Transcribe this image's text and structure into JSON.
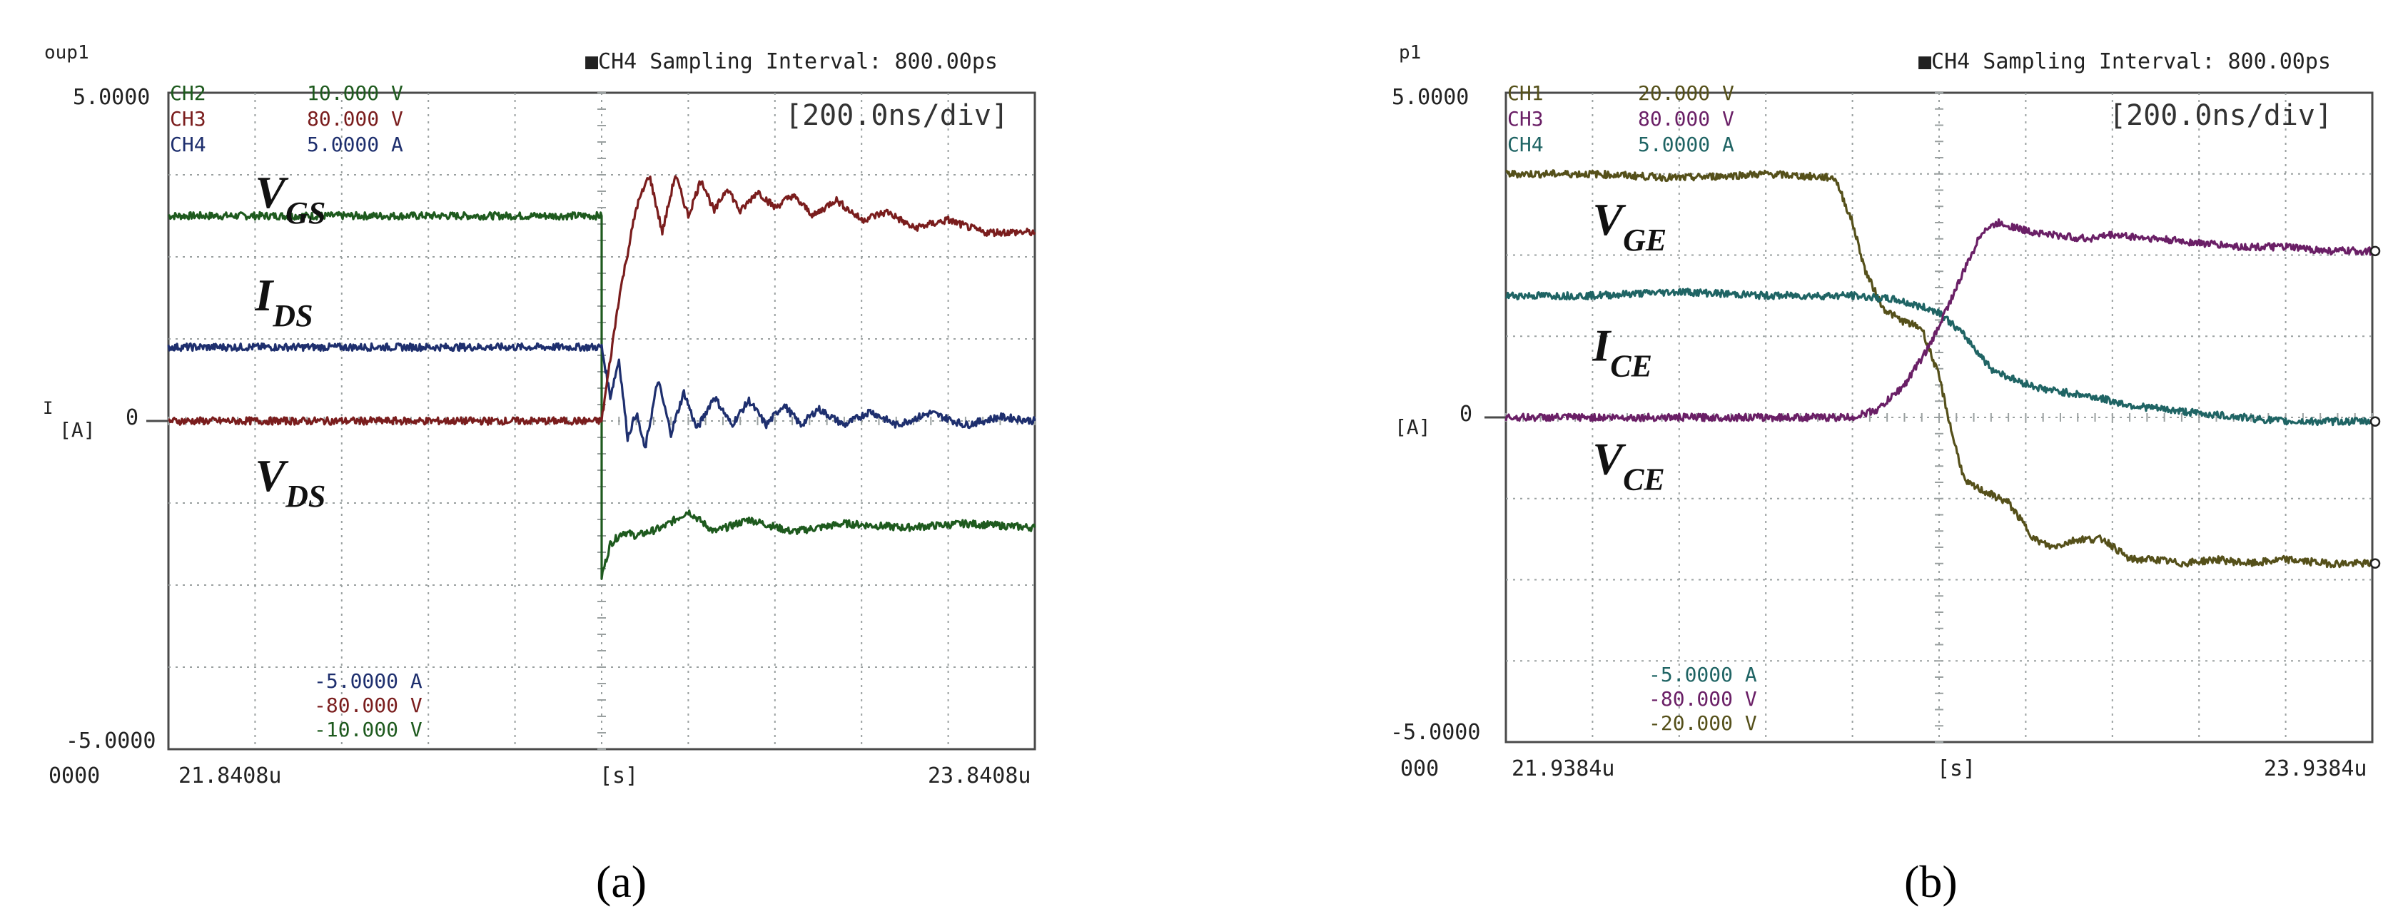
{
  "colors": {
    "grid": "#9aa0a0",
    "axis": "#4a4a4a",
    "text": "#222222",
    "green": "#1e5a1e",
    "red": "#7a1d1d",
    "navy": "#1e2f6e",
    "olive": "#55501a",
    "purple": "#6a1f66",
    "teal": "#1f6464"
  },
  "chart_data": [
    {
      "type": "line",
      "panel_label": "(a)",
      "corner_left": "oup1",
      "header": "■CH4 Sampling Interval:  800.00ps",
      "timebase": "[200.0ns/div]",
      "y_top_label": "5.0000",
      "y_bottom_label": "-5.0000",
      "y_zero_label": "0",
      "y_unit": "[A]",
      "y_side_mark": "I",
      "x_left_label": "0000",
      "x_start": "21.8408u",
      "x_unit": "[s]",
      "x_end": "23.8408u",
      "x_divisions": 10,
      "y_divisions": 8,
      "xlim": [
        0,
        10
      ],
      "ylim": [
        -4,
        4
      ],
      "channels_top": [
        {
          "name": "CH2",
          "scale": "10.000 V",
          "color": "green"
        },
        {
          "name": "CH3",
          "scale": "80.000 V",
          "color": "red"
        },
        {
          "name": "CH4",
          "scale": "5.0000 A",
          "color": "navy"
        }
      ],
      "channels_bottom": [
        {
          "scale": "-5.0000 A",
          "color": "navy"
        },
        {
          "scale": "-80.000 V",
          "color": "red"
        },
        {
          "scale": "-10.000 V",
          "color": "green"
        }
      ],
      "signal_labels": [
        {
          "main": "V",
          "sub": "GS",
          "x_div": 1.0,
          "y_div": 2.6
        },
        {
          "main": "I",
          "sub": "DS",
          "x_div": 1.0,
          "y_div": 1.35
        },
        {
          "main": "V",
          "sub": "DS",
          "x_div": 1.0,
          "y_div": -0.85
        }
      ],
      "series": [
        {
          "name": "V_GS",
          "color": "green",
          "x": [
            0,
            5.0,
            5.0,
            5.0,
            5.1,
            5.25,
            5.4,
            5.7,
            6.0,
            6.3,
            6.7,
            7.2,
            7.8,
            8.5,
            9.2,
            10
          ],
          "y": [
            2.5,
            2.5,
            -0.6,
            -1.9,
            -1.5,
            -1.35,
            -1.4,
            -1.3,
            -1.1,
            -1.35,
            -1.2,
            -1.35,
            -1.25,
            -1.3,
            -1.25,
            -1.3
          ]
        },
        {
          "name": "I_DS",
          "color": "navy",
          "x": [
            0,
            5.0,
            5.1,
            5.2,
            5.3,
            5.4,
            5.5,
            5.65,
            5.8,
            5.95,
            6.1,
            6.3,
            6.5,
            6.7,
            6.9,
            7.1,
            7.3,
            7.5,
            7.8,
            8.1,
            8.4,
            8.8,
            9.2,
            9.6,
            10
          ],
          "y": [
            0.9,
            0.9,
            0.3,
            0.75,
            -0.2,
            0.1,
            -0.35,
            0.5,
            -0.15,
            0.35,
            -0.1,
            0.3,
            -0.05,
            0.25,
            -0.05,
            0.2,
            -0.05,
            0.15,
            -0.05,
            0.12,
            -0.05,
            0.1,
            -0.05,
            0.05,
            0.0
          ]
        },
        {
          "name": "V_DS",
          "color": "red",
          "x": [
            0,
            5.0,
            5.2,
            5.4,
            5.55,
            5.7,
            5.85,
            6.0,
            6.15,
            6.3,
            6.45,
            6.6,
            6.8,
            7.0,
            7.2,
            7.45,
            7.7,
            8.0,
            8.3,
            8.6,
            9.0,
            9.4,
            10
          ],
          "y": [
            0.0,
            0.0,
            1.5,
            2.6,
            3.0,
            2.3,
            3.0,
            2.5,
            2.95,
            2.55,
            2.85,
            2.55,
            2.8,
            2.6,
            2.75,
            2.5,
            2.7,
            2.45,
            2.55,
            2.35,
            2.45,
            2.3,
            2.3
          ]
        }
      ]
    },
    {
      "type": "line",
      "panel_label": "(b)",
      "corner_left": "p1",
      "header": "■CH4 Sampling Interval:  800.00ps",
      "timebase": "[200.0ns/div]",
      "y_top_label": "5.0000",
      "y_bottom_label": "-5.0000",
      "y_zero_label": "0",
      "y_unit": "[A]",
      "x_left_label": "000",
      "x_start": "21.9384u",
      "x_unit": "[s]",
      "x_end": "23.9384u",
      "x_divisions": 10,
      "y_divisions": 8,
      "xlim": [
        0,
        10
      ],
      "ylim": [
        -4,
        4
      ],
      "channels_top": [
        {
          "name": "CH1",
          "scale": "20.000 V",
          "color": "olive"
        },
        {
          "name": "CH3",
          "scale": "80.000 V",
          "color": "purple"
        },
        {
          "name": "CH4",
          "scale": "5.0000 A",
          "color": "teal"
        }
      ],
      "channels_bottom": [
        {
          "scale": "-5.0000 A",
          "color": "teal"
        },
        {
          "scale": "-80.000 V",
          "color": "purple"
        },
        {
          "scale": "-20.000 V",
          "color": "olive"
        }
      ],
      "signal_labels": [
        {
          "main": "V",
          "sub": "GE",
          "x_div": 1.0,
          "y_div": 2.25
        },
        {
          "main": "I",
          "sub": "CE",
          "x_div": 1.0,
          "y_div": 0.7
        },
        {
          "main": "V",
          "sub": "CE",
          "x_div": 1.0,
          "y_div": -0.7
        }
      ],
      "series": [
        {
          "name": "V_GE",
          "color": "olive",
          "x": [
            0,
            1.0,
            2.0,
            3.0,
            3.8,
            4.0,
            4.15,
            4.35,
            4.55,
            4.8,
            5.0,
            5.15,
            5.3,
            5.5,
            5.8,
            6.1,
            6.3,
            6.6,
            6.9,
            7.2,
            7.5,
            7.8,
            8.2,
            8.6,
            9.0,
            9.5,
            10
          ],
          "y": [
            3.0,
            3.0,
            2.95,
            3.0,
            2.95,
            2.4,
            1.8,
            1.35,
            1.2,
            1.1,
            0.5,
            -0.2,
            -0.8,
            -0.9,
            -1.05,
            -1.5,
            -1.6,
            -1.5,
            -1.5,
            -1.75,
            -1.75,
            -1.8,
            -1.75,
            -1.8,
            -1.75,
            -1.8,
            -1.8
          ]
        },
        {
          "name": "I_CE",
          "color": "teal",
          "x": [
            0,
            1.0,
            2.0,
            3.0,
            4.0,
            4.5,
            5.0,
            5.3,
            5.6,
            5.9,
            6.2,
            6.5,
            6.8,
            7.2,
            7.6,
            8.0,
            8.5,
            9.0,
            9.5,
            10
          ],
          "y": [
            1.5,
            1.5,
            1.55,
            1.5,
            1.5,
            1.45,
            1.3,
            1.0,
            0.6,
            0.45,
            0.35,
            0.3,
            0.25,
            0.15,
            0.1,
            0.05,
            0.0,
            -0.05,
            -0.05,
            -0.05
          ]
        },
        {
          "name": "V_CE",
          "color": "purple",
          "x": [
            0,
            1.0,
            2.0,
            3.0,
            4.0,
            4.3,
            4.6,
            4.9,
            5.2,
            5.5,
            5.7,
            6.0,
            6.3,
            6.7,
            7.0,
            7.5,
            8.0,
            8.5,
            9.0,
            9.5,
            10
          ],
          "y": [
            0.0,
            0.0,
            0.0,
            0.0,
            0.0,
            0.1,
            0.4,
            0.9,
            1.6,
            2.3,
            2.4,
            2.3,
            2.25,
            2.2,
            2.25,
            2.2,
            2.15,
            2.1,
            2.1,
            2.05,
            2.05
          ]
        }
      ]
    }
  ]
}
